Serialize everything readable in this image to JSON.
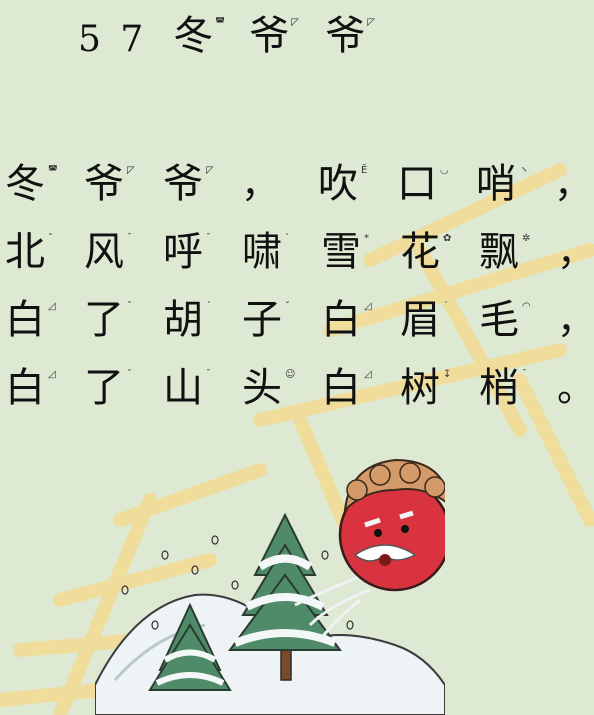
{
  "title": {
    "number": "5 7",
    "chars": [
      {
        "c": "冬",
        "p": "◚"
      },
      {
        "c": "爷",
        "p": "◸"
      },
      {
        "c": "爷",
        "p": "◸"
      }
    ]
  },
  "poem": {
    "lines": [
      {
        "chars": [
          {
            "c": "冬",
            "p": "◚"
          },
          {
            "c": "爷",
            "p": "◸"
          },
          {
            "c": "爷",
            "p": "◸"
          }
        ],
        "punct": "，",
        "chars2": [
          {
            "c": "吹",
            "p": "Ē"
          },
          {
            "c": "口",
            "p": "◡"
          },
          {
            "c": "哨",
            "p": "ヽ"
          }
        ],
        "end": "，"
      },
      {
        "chars": [
          {
            "c": "北",
            "p": "ˇ"
          },
          {
            "c": "风",
            "p": "ˉ"
          },
          {
            "c": "呼",
            "p": "ˉ"
          },
          {
            "c": "啸",
            "p": "ˋ"
          },
          {
            "c": "雪",
            "p": "*"
          },
          {
            "c": "花",
            "p": "✿"
          },
          {
            "c": "飘",
            "p": "✲"
          }
        ],
        "end": "，"
      },
      {
        "chars": [
          {
            "c": "白",
            "p": "◿"
          },
          {
            "c": "了",
            "p": "˘"
          },
          {
            "c": "胡",
            "p": "ˊ"
          },
          {
            "c": "子",
            "p": "ˇ"
          },
          {
            "c": "白",
            "p": "◿"
          },
          {
            "c": "眉",
            "p": "ˊ"
          },
          {
            "c": "毛",
            "p": "◠"
          }
        ],
        "end": "，"
      },
      {
        "chars": [
          {
            "c": "白",
            "p": "◿"
          },
          {
            "c": "了",
            "p": "˘"
          },
          {
            "c": "山",
            "p": "ˉ"
          },
          {
            "c": "头",
            "p": "☺"
          },
          {
            "c": "白",
            "p": "◿"
          },
          {
            "c": "树",
            "p": "↧"
          },
          {
            "c": "梢",
            "p": "ˉ"
          }
        ],
        "end": "。"
      }
    ]
  },
  "colors": {
    "background": "#dde9d2",
    "watermark": "#f7dc88",
    "text": "#111111"
  },
  "illustration": {
    "icon": "winter-grandpa-blowing-wind-icon"
  }
}
